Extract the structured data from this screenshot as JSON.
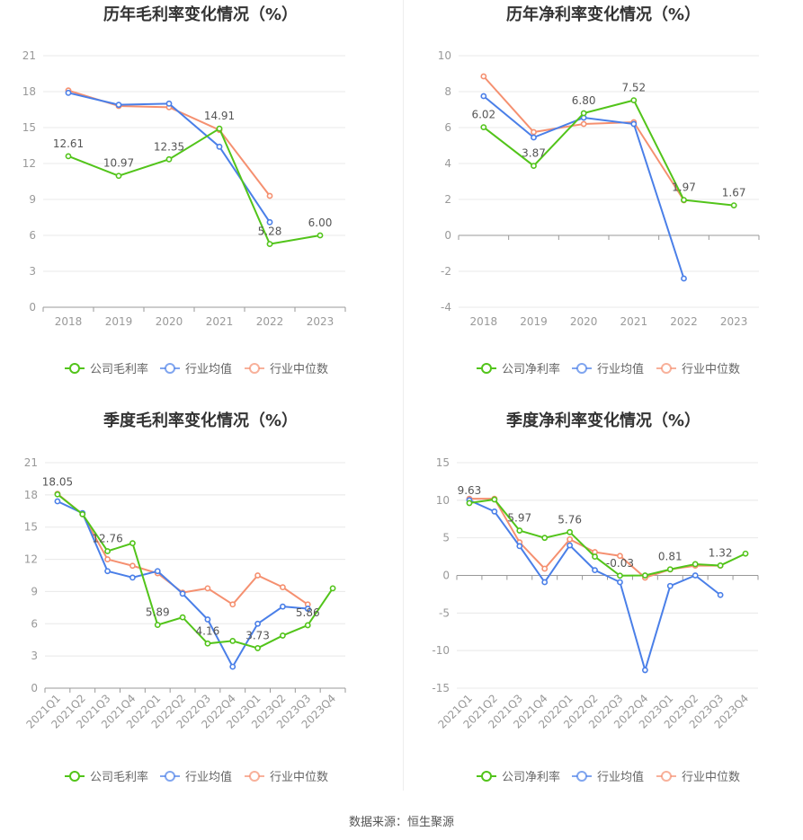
{
  "source_text": "数据来源：恒生聚源",
  "chart_data": [
    {
      "type": "line",
      "title": "历年毛利率变化情况（%）",
      "categories": [
        "2018",
        "2019",
        "2020",
        "2021",
        "2022",
        "2023"
      ],
      "ylim": [
        0,
        21
      ],
      "yticks": [
        0,
        3,
        6,
        9,
        12,
        15,
        18,
        21
      ],
      "grid": true,
      "legend_position": "bottom",
      "series": [
        {
          "name": "公司毛利率",
          "color": "#52c41a",
          "values": [
            12.61,
            10.97,
            12.35,
            14.91,
            5.28,
            6.0
          ],
          "labels": [
            "12.61",
            "10.97",
            "12.35",
            "14.91",
            "5.28",
            "6.00"
          ]
        },
        {
          "name": "行业均值",
          "color": "#4a7fe8",
          "values": [
            17.9,
            16.9,
            17.0,
            13.4,
            7.1,
            null
          ]
        },
        {
          "name": "行业中位数",
          "color": "#f59070",
          "values": [
            18.1,
            16.8,
            16.7,
            14.8,
            9.3,
            null
          ]
        }
      ]
    },
    {
      "type": "line",
      "title": "历年净利率变化情况（%）",
      "categories": [
        "2018",
        "2019",
        "2020",
        "2021",
        "2022",
        "2023"
      ],
      "ylim": [
        -4,
        10
      ],
      "yticks": [
        -4,
        -2,
        0,
        2,
        4,
        6,
        8,
        10
      ],
      "grid": true,
      "legend_position": "bottom",
      "series": [
        {
          "name": "公司净利率",
          "color": "#52c41a",
          "values": [
            6.02,
            3.87,
            6.8,
            7.52,
            1.97,
            1.67
          ],
          "labels": [
            "6.02",
            "3.87",
            "6.80",
            "7.52",
            "1.97",
            "1.67"
          ]
        },
        {
          "name": "行业均值",
          "color": "#4a7fe8",
          "values": [
            7.75,
            5.45,
            6.55,
            6.2,
            -2.4,
            null
          ]
        },
        {
          "name": "行业中位数",
          "color": "#f59070",
          "values": [
            8.85,
            5.75,
            6.2,
            6.3,
            1.95,
            null
          ]
        }
      ]
    },
    {
      "type": "line",
      "title": "季度毛利率变化情况（%）",
      "categories": [
        "2021Q1",
        "2021Q2",
        "2021Q3",
        "2021Q4",
        "2022Q1",
        "2022Q2",
        "2022Q3",
        "2022Q4",
        "2023Q1",
        "2023Q2",
        "2023Q3",
        "2023Q4"
      ],
      "ylim": [
        0,
        21
      ],
      "yticks": [
        0,
        3,
        6,
        9,
        12,
        15,
        18,
        21
      ],
      "grid": true,
      "legend_position": "bottom",
      "series": [
        {
          "name": "公司毛利率",
          "color": "#52c41a",
          "values": [
            18.05,
            16.2,
            12.76,
            13.5,
            5.89,
            6.6,
            4.16,
            4.4,
            3.73,
            4.9,
            5.86,
            9.3
          ],
          "labels": [
            "18.05",
            "",
            "12.76",
            "",
            "5.89",
            "",
            "4.16",
            "",
            "3.73",
            "",
            "5.86",
            ""
          ]
        },
        {
          "name": "行业均值",
          "color": "#4a7fe8",
          "values": [
            17.4,
            16.3,
            10.9,
            10.3,
            10.9,
            8.8,
            6.4,
            2.0,
            6.0,
            7.6,
            7.4,
            null
          ]
        },
        {
          "name": "行业中位数",
          "color": "#f59070",
          "values": [
            18.1,
            16.2,
            12.0,
            11.4,
            10.7,
            8.9,
            9.3,
            7.8,
            10.5,
            9.4,
            7.8,
            null
          ]
        }
      ]
    },
    {
      "type": "line",
      "title": "季度净利率变化情况（%）",
      "categories": [
        "2021Q1",
        "2021Q2",
        "2021Q3",
        "2021Q4",
        "2022Q1",
        "2022Q2",
        "2022Q3",
        "2022Q4",
        "2023Q1",
        "2023Q2",
        "2023Q3",
        "2023Q4"
      ],
      "ylim": [
        -15,
        15
      ],
      "yticks": [
        -15,
        -10,
        -5,
        0,
        5,
        10,
        15
      ],
      "grid": true,
      "legend_position": "bottom",
      "series": [
        {
          "name": "公司净利率",
          "color": "#52c41a",
          "values": [
            9.63,
            10.1,
            5.97,
            5.0,
            5.76,
            2.5,
            -0.03,
            0.0,
            0.81,
            1.5,
            1.32,
            2.9
          ],
          "labels": [
            "9.63",
            "",
            "5.97",
            "",
            "5.76",
            "",
            "-0.03",
            "",
            "0.81",
            "",
            "1.32",
            ""
          ]
        },
        {
          "name": "行业均值",
          "color": "#4a7fe8",
          "values": [
            10.0,
            8.5,
            3.9,
            -0.9,
            4.0,
            0.7,
            -0.9,
            -12.6,
            -1.4,
            0.0,
            -2.6,
            null
          ]
        },
        {
          "name": "行业中位数",
          "color": "#f59070",
          "values": [
            10.2,
            10.2,
            4.4,
            0.9,
            4.8,
            3.1,
            2.6,
            -0.3,
            0.8,
            1.3,
            1.3,
            null
          ]
        }
      ]
    }
  ]
}
